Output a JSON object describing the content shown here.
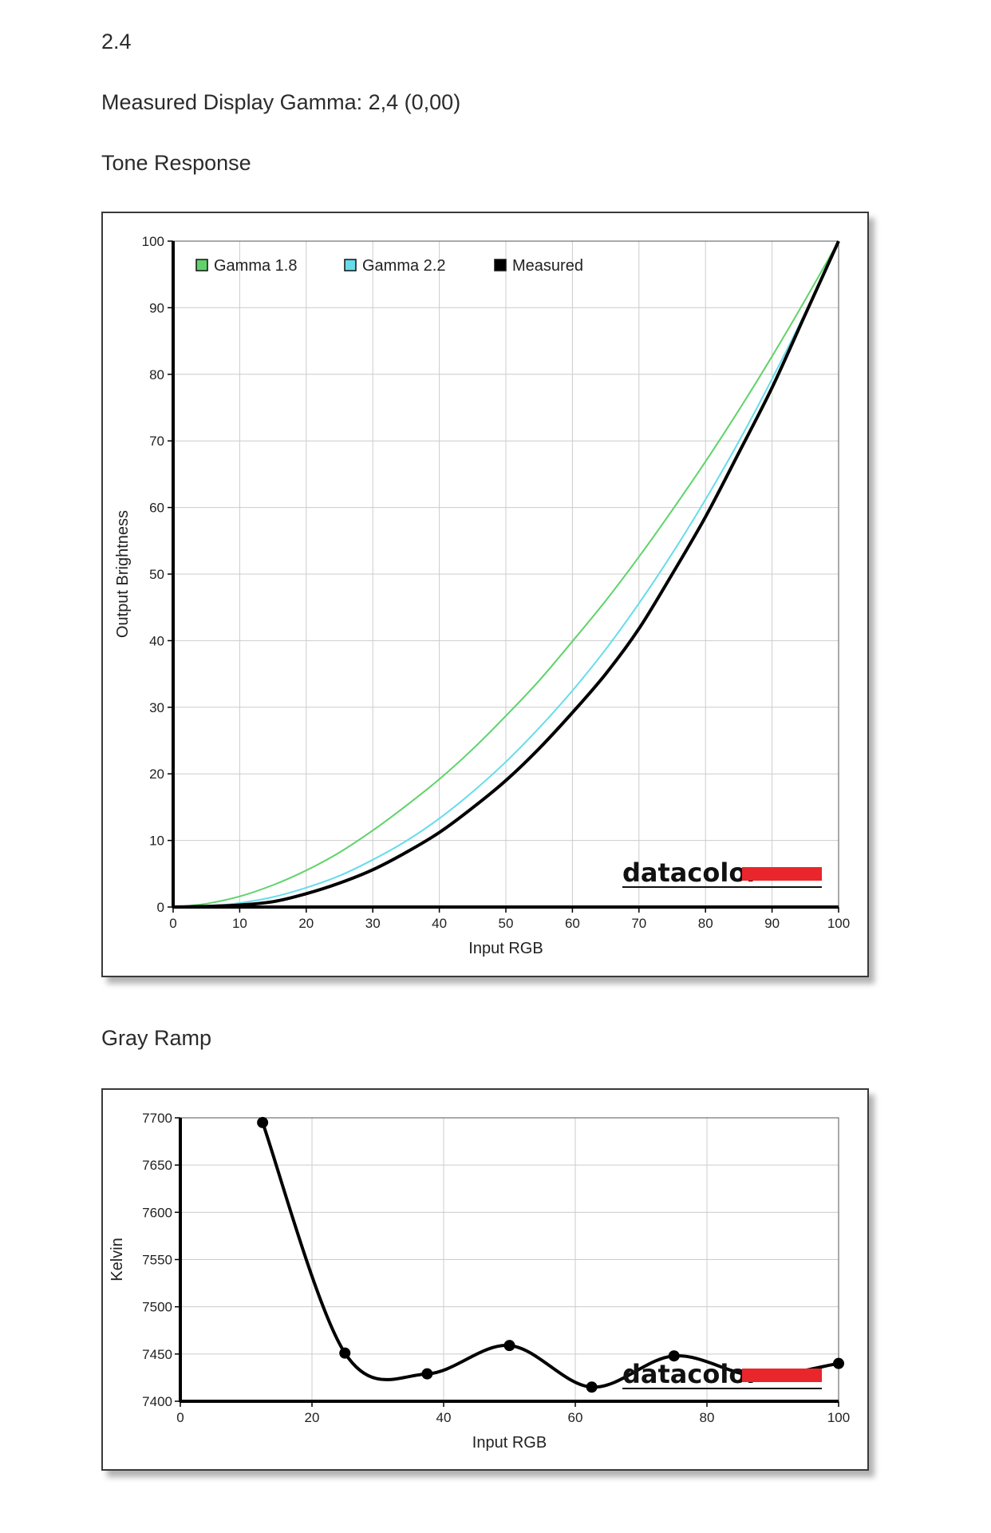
{
  "header": {
    "title": "2.4",
    "gamma_line": "Measured Display Gamma: 2,4 (0,00)",
    "section1": "Tone Response",
    "section2": "Gray Ramp"
  },
  "logo_text": "datacolor",
  "colors": {
    "gamma18": "#5fd36a",
    "gamma22": "#66dceb",
    "measured": "#000000",
    "logo_red": "#e8262c",
    "grid": "#cccccc"
  },
  "chart_data": [
    {
      "type": "line",
      "xlabel": "Input RGB",
      "ylabel": "Output Brightness",
      "xlim": [
        0,
        100
      ],
      "ylim": [
        0,
        100
      ],
      "xticks": [
        0,
        10,
        20,
        30,
        40,
        50,
        60,
        70,
        80,
        90,
        100
      ],
      "yticks": [
        0,
        10,
        20,
        30,
        40,
        50,
        60,
        70,
        80,
        90,
        100
      ],
      "grid": true,
      "legend_position": "top-left",
      "x": [
        0,
        5,
        10,
        15,
        20,
        25,
        30,
        35,
        40,
        45,
        50,
        55,
        60,
        65,
        70,
        75,
        80,
        85,
        90,
        95,
        100
      ],
      "series": [
        {
          "name": "Gamma 1.8",
          "color": "#5fd36a",
          "values": [
            0,
            0.5,
            1.6,
            3.3,
            5.5,
            8.2,
            11.5,
            15.2,
            19.2,
            23.7,
            28.7,
            34.0,
            39.9,
            46.0,
            52.6,
            59.6,
            66.9,
            74.6,
            82.7,
            91.2,
            100
          ]
        },
        {
          "name": "Gamma 2.2",
          "color": "#66dceb",
          "values": [
            0,
            0.1,
            0.6,
            1.5,
            2.9,
            4.7,
            7.1,
            9.9,
            13.3,
            17.3,
            21.8,
            26.9,
            32.5,
            38.7,
            45.6,
            53.1,
            61.2,
            69.9,
            79.3,
            89.3,
            100
          ]
        },
        {
          "name": "Measured",
          "color": "#000000",
          "values": [
            0,
            0.1,
            0.3,
            0.8,
            2.0,
            3.6,
            5.6,
            8.2,
            11.2,
            14.9,
            19.0,
            23.8,
            29.2,
            35.0,
            41.8,
            50.0,
            58.6,
            68.2,
            78.0,
            89.0,
            100
          ]
        }
      ]
    },
    {
      "type": "line",
      "xlabel": "Input RGB",
      "ylabel": "Kelvin",
      "xlim": [
        0,
        100
      ],
      "ylim": [
        7400,
        7700
      ],
      "xticks": [
        0,
        20,
        40,
        60,
        80,
        100
      ],
      "yticks": [
        7400,
        7450,
        7500,
        7550,
        7600,
        7650,
        7700
      ],
      "grid": true,
      "markers": true,
      "series": [
        {
          "name": "Measured",
          "color": "#000000",
          "x": [
            12.5,
            25,
            37.5,
            50,
            62.5,
            75,
            87.5,
            100
          ],
          "values": [
            7695,
            7451,
            7429,
            7459,
            7415,
            7448,
            7427,
            7440
          ]
        }
      ]
    }
  ]
}
